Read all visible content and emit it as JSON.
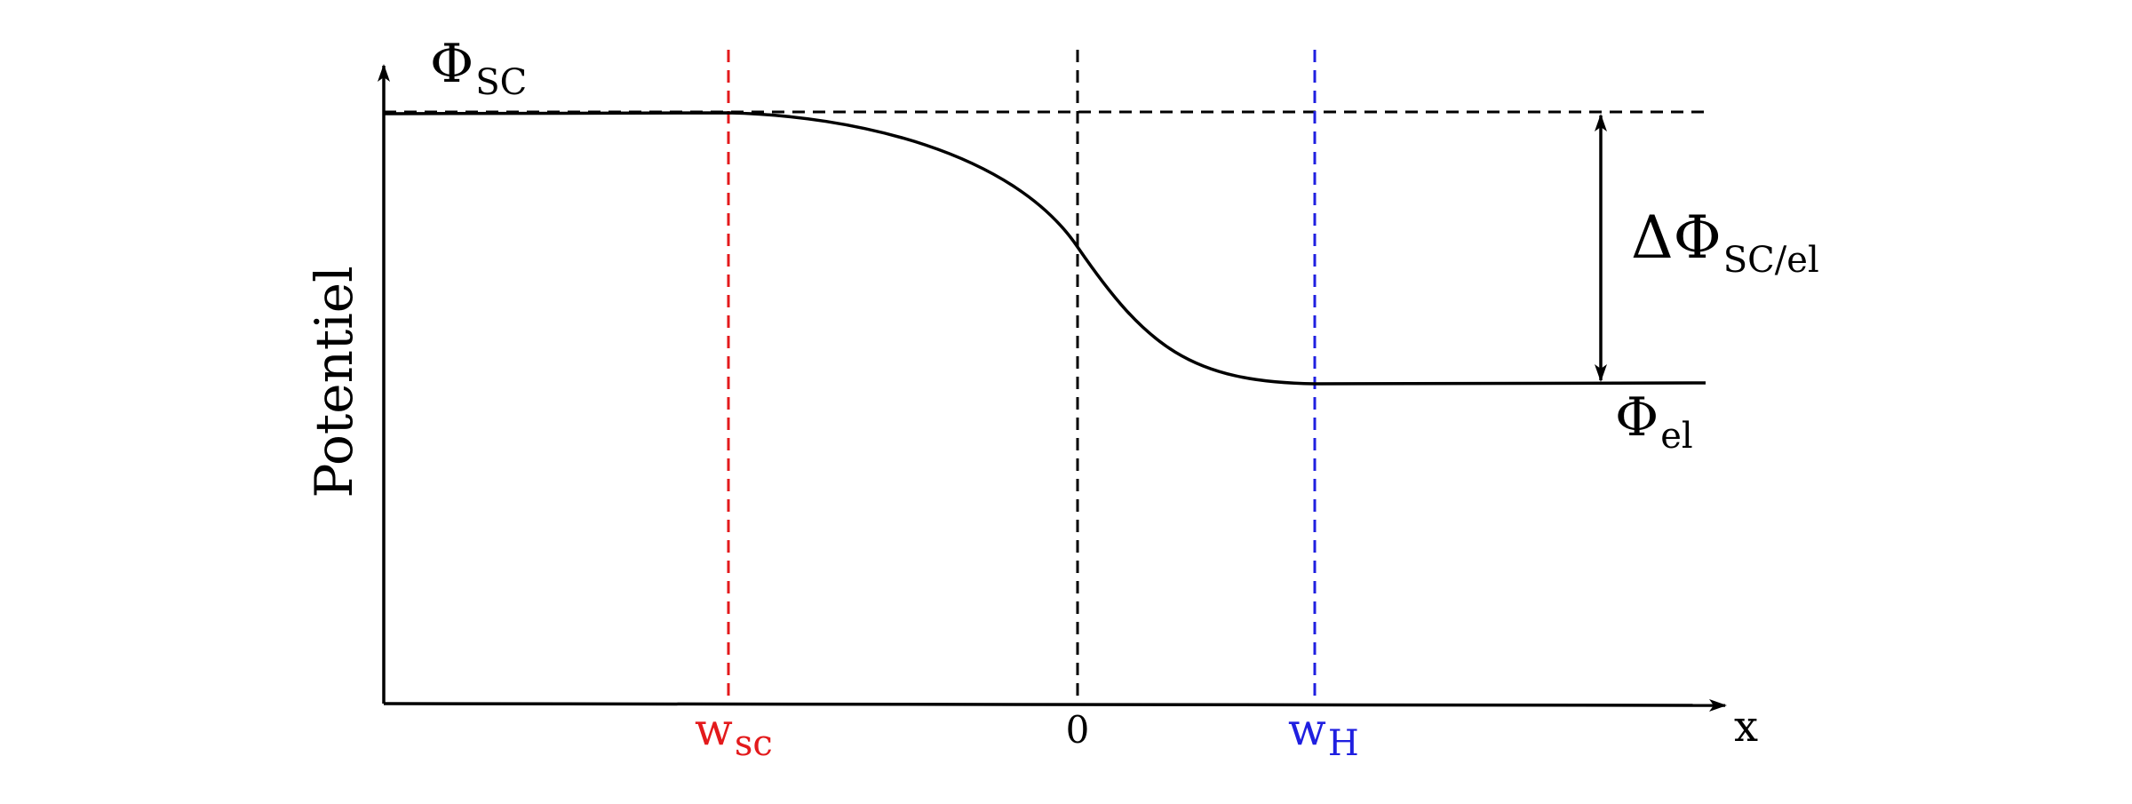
{
  "diagram": {
    "y_axis_label": "Potentiel",
    "x_axis_label": "x",
    "phi_sc": {
      "symbol": "Φ",
      "subscript": "SC"
    },
    "phi_el": {
      "symbol": "Φ",
      "subscript": "el"
    },
    "delta_phi": {
      "symbol": "ΔΦ",
      "subscript": "SC/el"
    },
    "markers": {
      "w_sc": {
        "symbol": "w",
        "subscript": "sc",
        "color": "#e31a1c"
      },
      "zero": {
        "label": "0",
        "color": "#000000"
      },
      "w_h": {
        "symbol": "w",
        "subscript": "H",
        "color": "#1f1fe0"
      }
    }
  }
}
